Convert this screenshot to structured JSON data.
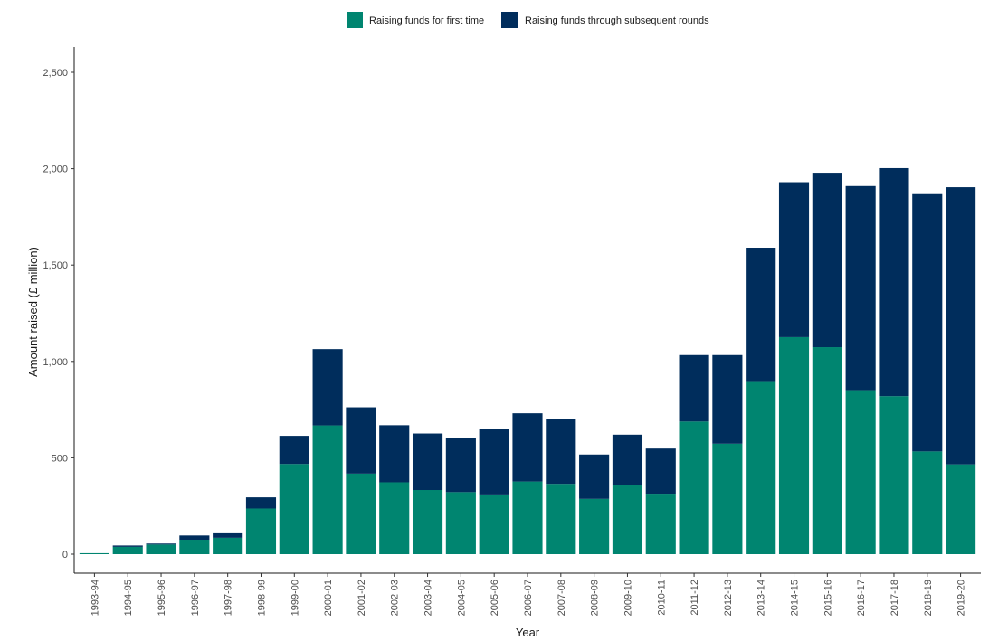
{
  "chart_data": {
    "type": "bar",
    "stacked": true,
    "title": "",
    "xlabel": "Year",
    "ylabel": "Amount raised (£ million)",
    "ylim": [
      0,
      2500
    ],
    "yticks": [
      0,
      500,
      1000,
      1500,
      2000,
      2500
    ],
    "ytick_labels": [
      "0",
      "500",
      "1,000",
      "1,500",
      "2,000",
      "2,500"
    ],
    "grid": false,
    "legend_position": "top",
    "categories": [
      "1993-94",
      "1994-95",
      "1995-96",
      "1996-97",
      "1997-98",
      "1998-99",
      "1999-00",
      "2000-01",
      "2001-02",
      "2002-03",
      "2003-04",
      "2004-05",
      "2005-06",
      "2006-07",
      "2007-08",
      "2008-09",
      "2009-10",
      "2010-11",
      "2011-12",
      "2012-13",
      "2013-14",
      "2014-15",
      "2015-16",
      "2016-17",
      "2017-18",
      "2018-19",
      "2019-20"
    ],
    "series": [
      {
        "name": "Raising funds for first time",
        "color": "#008570",
        "values": [
          5,
          38,
          50,
          75,
          85,
          237,
          468,
          668,
          418,
          373,
          333,
          322,
          310,
          377,
          365,
          287,
          360,
          314,
          688,
          573,
          898,
          1126,
          1074,
          851,
          820,
          533,
          466
        ]
      },
      {
        "name": "Raising funds through subsequent rounds",
        "color": "#002d5c",
        "values": [
          0,
          7,
          5,
          22,
          28,
          58,
          146,
          396,
          344,
          296,
          293,
          283,
          338,
          354,
          338,
          230,
          260,
          234,
          345,
          460,
          692,
          804,
          905,
          1059,
          1183,
          1335,
          1438
        ]
      }
    ]
  }
}
